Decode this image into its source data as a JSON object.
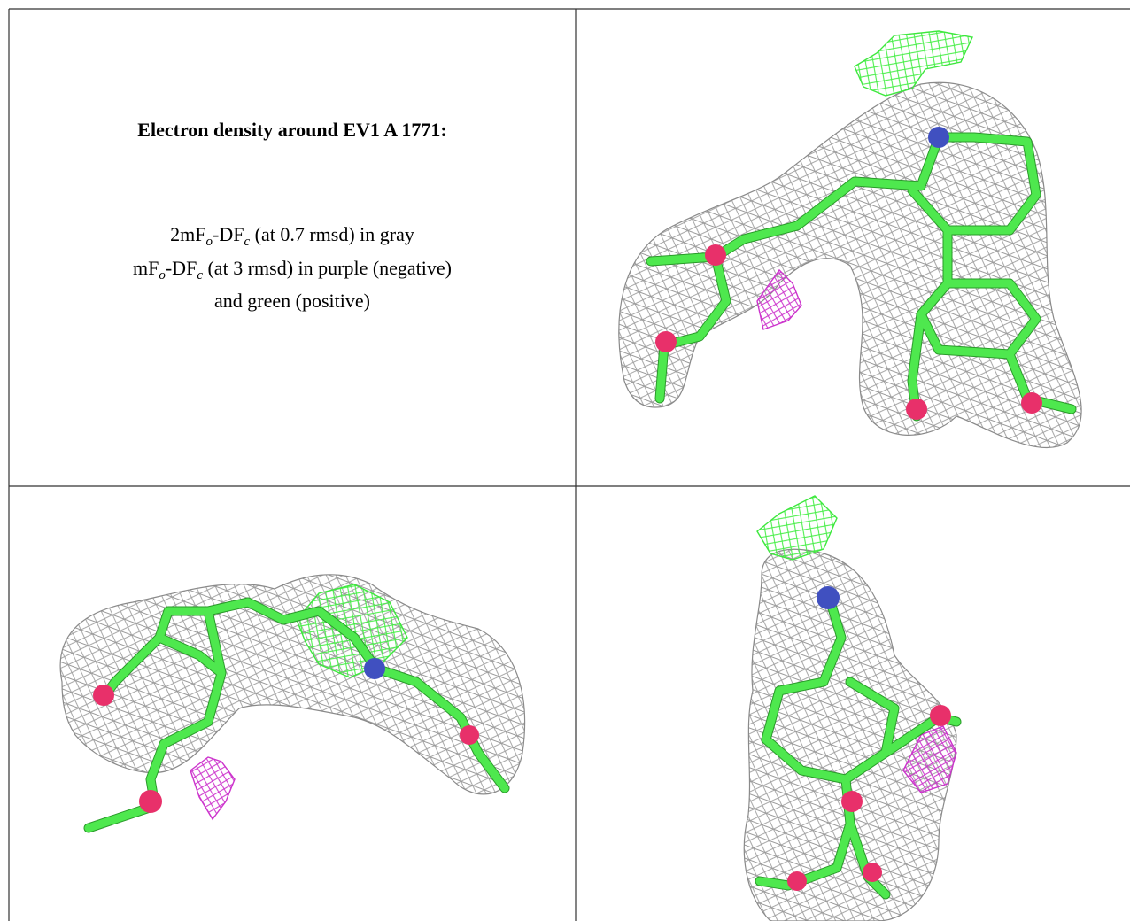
{
  "caption": {
    "title": "Electron density around EV1 A 1771:",
    "lines": [
      [
        "2mF",
        "o",
        "-DF",
        "c",
        " (at 0.7 rmsd) in gray"
      ],
      [
        "mF",
        "o",
        "-DF",
        "c",
        " (at 3 rmsd) in purple (negative)"
      ],
      [
        "and green (positive)"
      ]
    ]
  }
}
